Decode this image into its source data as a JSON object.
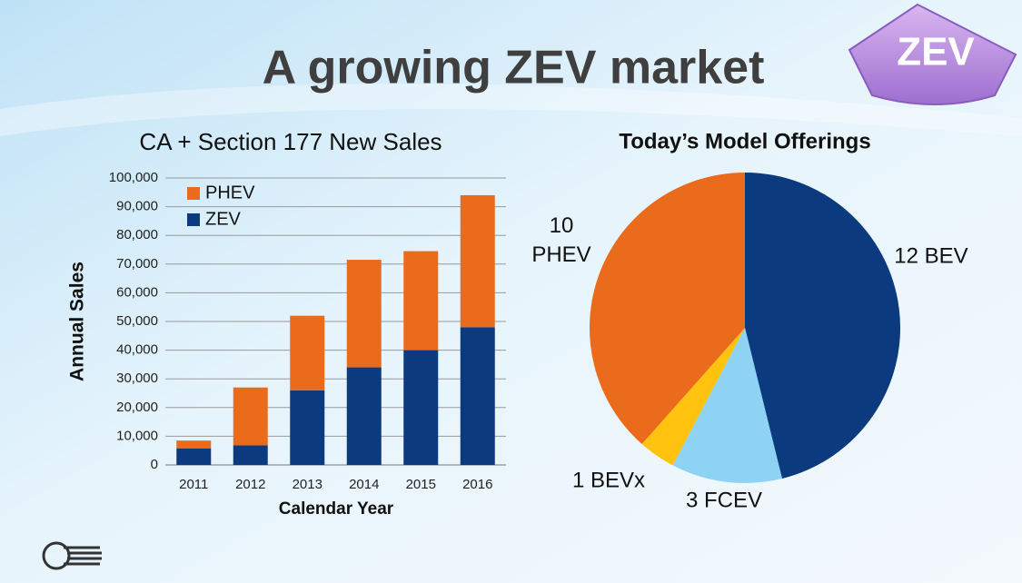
{
  "title": "A growing ZEV market",
  "badge": "ZEV",
  "chart_data": [
    {
      "type": "stacked-bar",
      "title": "CA + Section 177 New Sales",
      "x_label": "Calendar Year",
      "y_label": "Annual Sales",
      "categories": [
        "2011",
        "2012",
        "2013",
        "2014",
        "2015",
        "2016"
      ],
      "series": [
        {
          "name": "ZEV",
          "color": "#0b3a7e",
          "values": [
            5800,
            6800,
            26000,
            34000,
            40000,
            48000
          ]
        },
        {
          "name": "PHEV",
          "color": "#e96b1b",
          "values": [
            2700,
            20200,
            26000,
            37500,
            34500,
            46000
          ]
        }
      ],
      "ylim": [
        0,
        100000
      ],
      "yticks": [
        0,
        {
          "value": 10000,
          "label": "10,000"
        },
        {
          "value": 20000,
          "label": "20,000"
        },
        {
          "value": 30000,
          "label": "30,000"
        },
        {
          "value": 40000,
          "label": "40,000"
        },
        {
          "value": 50000,
          "label": "50,000"
        },
        {
          "value": 60000,
          "label": "60,000"
        },
        {
          "value": 70000,
          "label": "70,000"
        },
        {
          "value": 80000,
          "label": "80,000"
        },
        {
          "value": 90000,
          "label": "90,000"
        },
        {
          "value": 100000,
          "label": "100,000"
        }
      ],
      "grid": true,
      "legend": "top-left"
    },
    {
      "type": "pie",
      "title": "Today’s Model Offerings",
      "values": [
        12,
        3,
        1,
        10
      ],
      "value_labels": [
        "12 BEV",
        "3 FCEV",
        "1 BEVx",
        "10 PHEV"
      ],
      "colors": [
        "#0b3a7e",
        "#8fd3f4",
        "#ffc20e",
        "#e96b1b"
      ]
    }
  ]
}
